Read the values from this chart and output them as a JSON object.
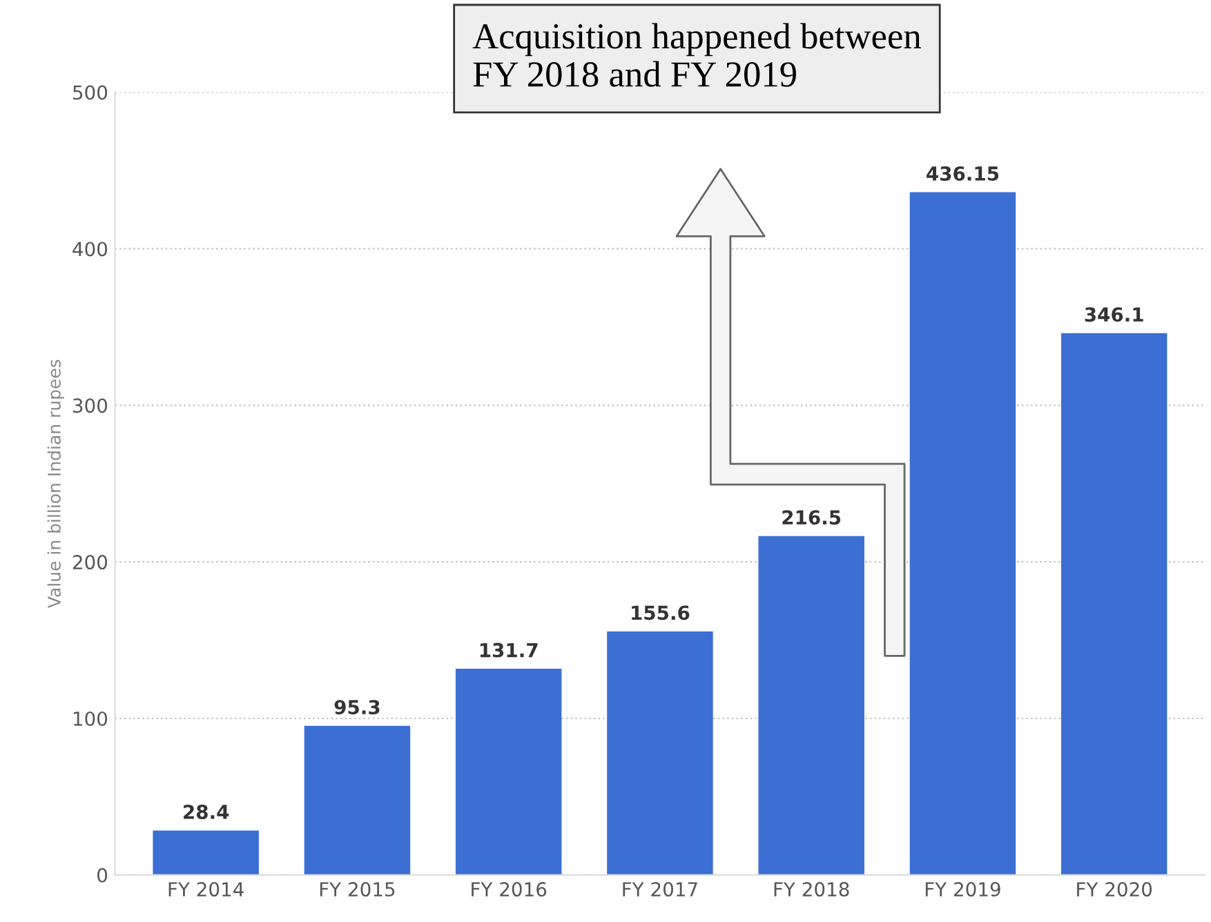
{
  "chart_data": {
    "type": "bar",
    "categories": [
      "FY 2014",
      "FY 2015",
      "FY 2016",
      "FY 2017",
      "FY 2018",
      "FY 2019",
      "FY 2020"
    ],
    "values": [
      28.4,
      95.3,
      131.7,
      155.6,
      216.5,
      436.15,
      346.1
    ],
    "value_labels": [
      "28.4",
      "95.3",
      "131.7",
      "155.6",
      "216.5",
      "436.15",
      "346.1"
    ],
    "color": "#3b6fd4",
    "ylabel": "Value in billion Indian rupees",
    "ylim": [
      0,
      500
    ],
    "yticks": [
      0,
      100,
      200,
      300,
      400,
      500
    ],
    "grid": "y",
    "annotations": [
      "Acquisition happened between\nFY 2018 and FY 2019"
    ]
  }
}
